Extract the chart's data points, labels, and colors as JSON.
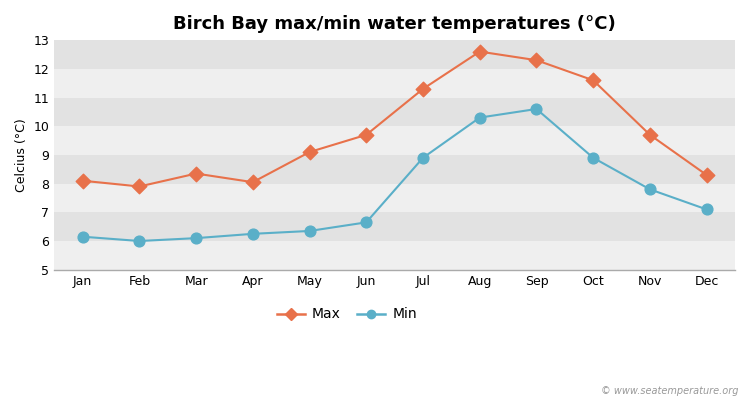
{
  "title": "Birch Bay max/min water temperatures (°C)",
  "xlabel": "",
  "ylabel": "Celcius (°C)",
  "months": [
    "Jan",
    "Feb",
    "Mar",
    "Apr",
    "May",
    "Jun",
    "Jul",
    "Aug",
    "Sep",
    "Oct",
    "Nov",
    "Dec"
  ],
  "max_values": [
    8.1,
    7.9,
    8.35,
    8.05,
    9.1,
    9.7,
    11.3,
    12.6,
    12.3,
    11.6,
    9.7,
    8.3
  ],
  "min_values": [
    6.15,
    6.0,
    6.1,
    6.25,
    6.35,
    6.65,
    8.9,
    10.3,
    10.6,
    8.9,
    7.8,
    7.1
  ],
  "max_color": "#E8714A",
  "min_color": "#5AAFC8",
  "figure_bg_color": "#FFFFFF",
  "band_light": "#EFEFEF",
  "band_dark": "#E2E2E2",
  "ylim": [
    5,
    13
  ],
  "yticks": [
    5,
    6,
    7,
    8,
    9,
    10,
    11,
    12,
    13
  ],
  "legend_labels": [
    "Max",
    "Min"
  ],
  "watermark": "© www.seatemperature.org",
  "title_fontsize": 13,
  "axis_fontsize": 9,
  "tick_fontsize": 9
}
